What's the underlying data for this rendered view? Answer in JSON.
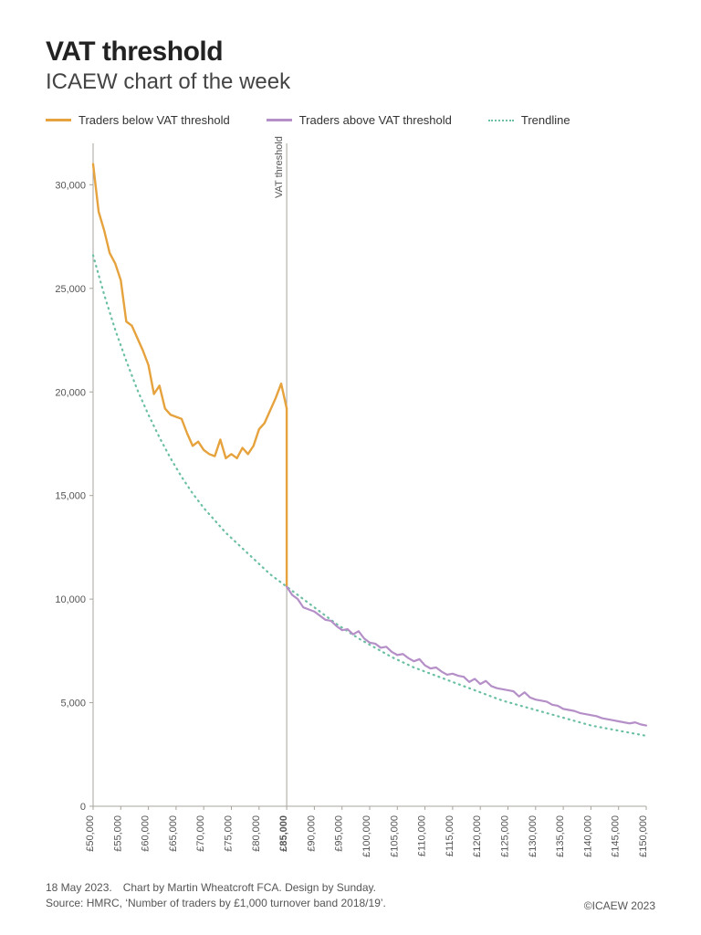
{
  "title": "VAT threshold",
  "subtitle": "ICAEW chart of the week",
  "legend": {
    "below": "Traders below VAT threshold",
    "above": "Traders above VAT threshold",
    "trend": "Trendline"
  },
  "chart": {
    "type": "line",
    "xlim": [
      50000,
      150000
    ],
    "ylim": [
      0,
      32000
    ],
    "ytick_step": 5000,
    "yticks": [
      0,
      5000,
      10000,
      15000,
      20000,
      25000,
      30000
    ],
    "xtick_step": 5000,
    "xticks": [
      50000,
      55000,
      60000,
      65000,
      70000,
      75000,
      80000,
      85000,
      90000,
      95000,
      100000,
      105000,
      110000,
      115000,
      120000,
      125000,
      130000,
      135000,
      140000,
      145000,
      150000
    ],
    "threshold_x": 85000,
    "threshold_label": "VAT threshold",
    "threshold_tick_bold": true,
    "background_color": "#ffffff",
    "axis_color": "#a8a49c",
    "axis_width": 1,
    "tick_font_size": 11,
    "y_tick_format": "comma",
    "x_tick_format": "pound_comma",
    "colors": {
      "below": "#e6a23c",
      "above": "#b58fc7",
      "trend": "#6bbfa3",
      "threshold_line": "#a8a49c"
    },
    "line_widths": {
      "below": 2.4,
      "above": 2.2,
      "trend": 2.2
    },
    "trend_dash": "1 5",
    "series_below": [
      [
        50000,
        31000
      ],
      [
        51000,
        28700
      ],
      [
        52000,
        27800
      ],
      [
        53000,
        26700
      ],
      [
        54000,
        26200
      ],
      [
        55000,
        25400
      ],
      [
        56000,
        23400
      ],
      [
        57000,
        23200
      ],
      [
        58000,
        22600
      ],
      [
        59000,
        22000
      ],
      [
        60000,
        21300
      ],
      [
        61000,
        19900
      ],
      [
        62000,
        20300
      ],
      [
        63000,
        19200
      ],
      [
        64000,
        18900
      ],
      [
        65000,
        18800
      ],
      [
        66000,
        18700
      ],
      [
        67000,
        18000
      ],
      [
        68000,
        17400
      ],
      [
        69000,
        17600
      ],
      [
        70000,
        17200
      ],
      [
        71000,
        17000
      ],
      [
        72000,
        16900
      ],
      [
        73000,
        17700
      ],
      [
        74000,
        16800
      ],
      [
        75000,
        17000
      ],
      [
        76000,
        16800
      ],
      [
        77000,
        17300
      ],
      [
        78000,
        17000
      ],
      [
        79000,
        17400
      ],
      [
        80000,
        18200
      ],
      [
        81000,
        18500
      ],
      [
        82000,
        19100
      ],
      [
        83000,
        19700
      ],
      [
        84000,
        20400
      ],
      [
        85000,
        19200
      ]
    ],
    "series_above": [
      [
        85000,
        10600
      ],
      [
        86000,
        10200
      ],
      [
        87000,
        10000
      ],
      [
        88000,
        9600
      ],
      [
        89000,
        9500
      ],
      [
        90000,
        9400
      ],
      [
        91000,
        9200
      ],
      [
        92000,
        9000
      ],
      [
        93000,
        8950
      ],
      [
        94000,
        8700
      ],
      [
        95000,
        8500
      ],
      [
        96000,
        8550
      ],
      [
        97000,
        8300
      ],
      [
        98000,
        8450
      ],
      [
        99000,
        8100
      ],
      [
        100000,
        7900
      ],
      [
        101000,
        7850
      ],
      [
        102000,
        7650
      ],
      [
        103000,
        7700
      ],
      [
        104000,
        7450
      ],
      [
        105000,
        7300
      ],
      [
        106000,
        7350
      ],
      [
        107000,
        7150
      ],
      [
        108000,
        7000
      ],
      [
        109000,
        7100
      ],
      [
        110000,
        6800
      ],
      [
        111000,
        6650
      ],
      [
        112000,
        6700
      ],
      [
        113000,
        6500
      ],
      [
        114000,
        6350
      ],
      [
        115000,
        6400
      ],
      [
        116000,
        6300
      ],
      [
        117000,
        6250
      ],
      [
        118000,
        6000
      ],
      [
        119000,
        6150
      ],
      [
        120000,
        5900
      ],
      [
        121000,
        6050
      ],
      [
        122000,
        5800
      ],
      [
        123000,
        5700
      ],
      [
        124000,
        5650
      ],
      [
        125000,
        5600
      ],
      [
        126000,
        5550
      ],
      [
        127000,
        5300
      ],
      [
        128000,
        5500
      ],
      [
        129000,
        5250
      ],
      [
        130000,
        5150
      ],
      [
        131000,
        5100
      ],
      [
        132000,
        5050
      ],
      [
        133000,
        4900
      ],
      [
        134000,
        4850
      ],
      [
        135000,
        4700
      ],
      [
        136000,
        4650
      ],
      [
        137000,
        4600
      ],
      [
        138000,
        4500
      ],
      [
        139000,
        4450
      ],
      [
        140000,
        4400
      ],
      [
        141000,
        4350
      ],
      [
        142000,
        4250
      ],
      [
        143000,
        4200
      ],
      [
        144000,
        4150
      ],
      [
        145000,
        4100
      ],
      [
        146000,
        4050
      ],
      [
        147000,
        4000
      ],
      [
        148000,
        4050
      ],
      [
        149000,
        3950
      ],
      [
        150000,
        3900
      ]
    ],
    "series_trend": [
      [
        50000,
        26600
      ],
      [
        52000,
        24700
      ],
      [
        54000,
        23000
      ],
      [
        56000,
        21500
      ],
      [
        58000,
        20100
      ],
      [
        60000,
        18900
      ],
      [
        62000,
        17800
      ],
      [
        64000,
        16800
      ],
      [
        66000,
        15900
      ],
      [
        68000,
        15100
      ],
      [
        70000,
        14400
      ],
      [
        72000,
        13800
      ],
      [
        74000,
        13200
      ],
      [
        76000,
        12700
      ],
      [
        78000,
        12200
      ],
      [
        80000,
        11700
      ],
      [
        82000,
        11200
      ],
      [
        84000,
        10800
      ],
      [
        86000,
        10400
      ],
      [
        88000,
        10000
      ],
      [
        90000,
        9600
      ],
      [
        92000,
        9200
      ],
      [
        94000,
        8800
      ],
      [
        96000,
        8450
      ],
      [
        98000,
        8100
      ],
      [
        100000,
        7800
      ],
      [
        102000,
        7500
      ],
      [
        104000,
        7200
      ],
      [
        106000,
        6950
      ],
      [
        108000,
        6700
      ],
      [
        110000,
        6500
      ],
      [
        112000,
        6300
      ],
      [
        114000,
        6100
      ],
      [
        116000,
        5900
      ],
      [
        118000,
        5700
      ],
      [
        120000,
        5500
      ],
      [
        122000,
        5300
      ],
      [
        124000,
        5100
      ],
      [
        126000,
        4950
      ],
      [
        128000,
        4800
      ],
      [
        130000,
        4650
      ],
      [
        132000,
        4500
      ],
      [
        134000,
        4350
      ],
      [
        136000,
        4200
      ],
      [
        138000,
        4050
      ],
      [
        140000,
        3900
      ],
      [
        142000,
        3800
      ],
      [
        144000,
        3700
      ],
      [
        146000,
        3600
      ],
      [
        148000,
        3500
      ],
      [
        150000,
        3400
      ]
    ]
  },
  "footer": {
    "line1": "18 May 2023. Chart by Martin Wheatcroft FCA. Design by Sunday.",
    "line2": "Source: HMRC, ‘Number of traders by £1,000 turnover band 2018/19’.",
    "copyright": "©ICAEW 2023"
  }
}
